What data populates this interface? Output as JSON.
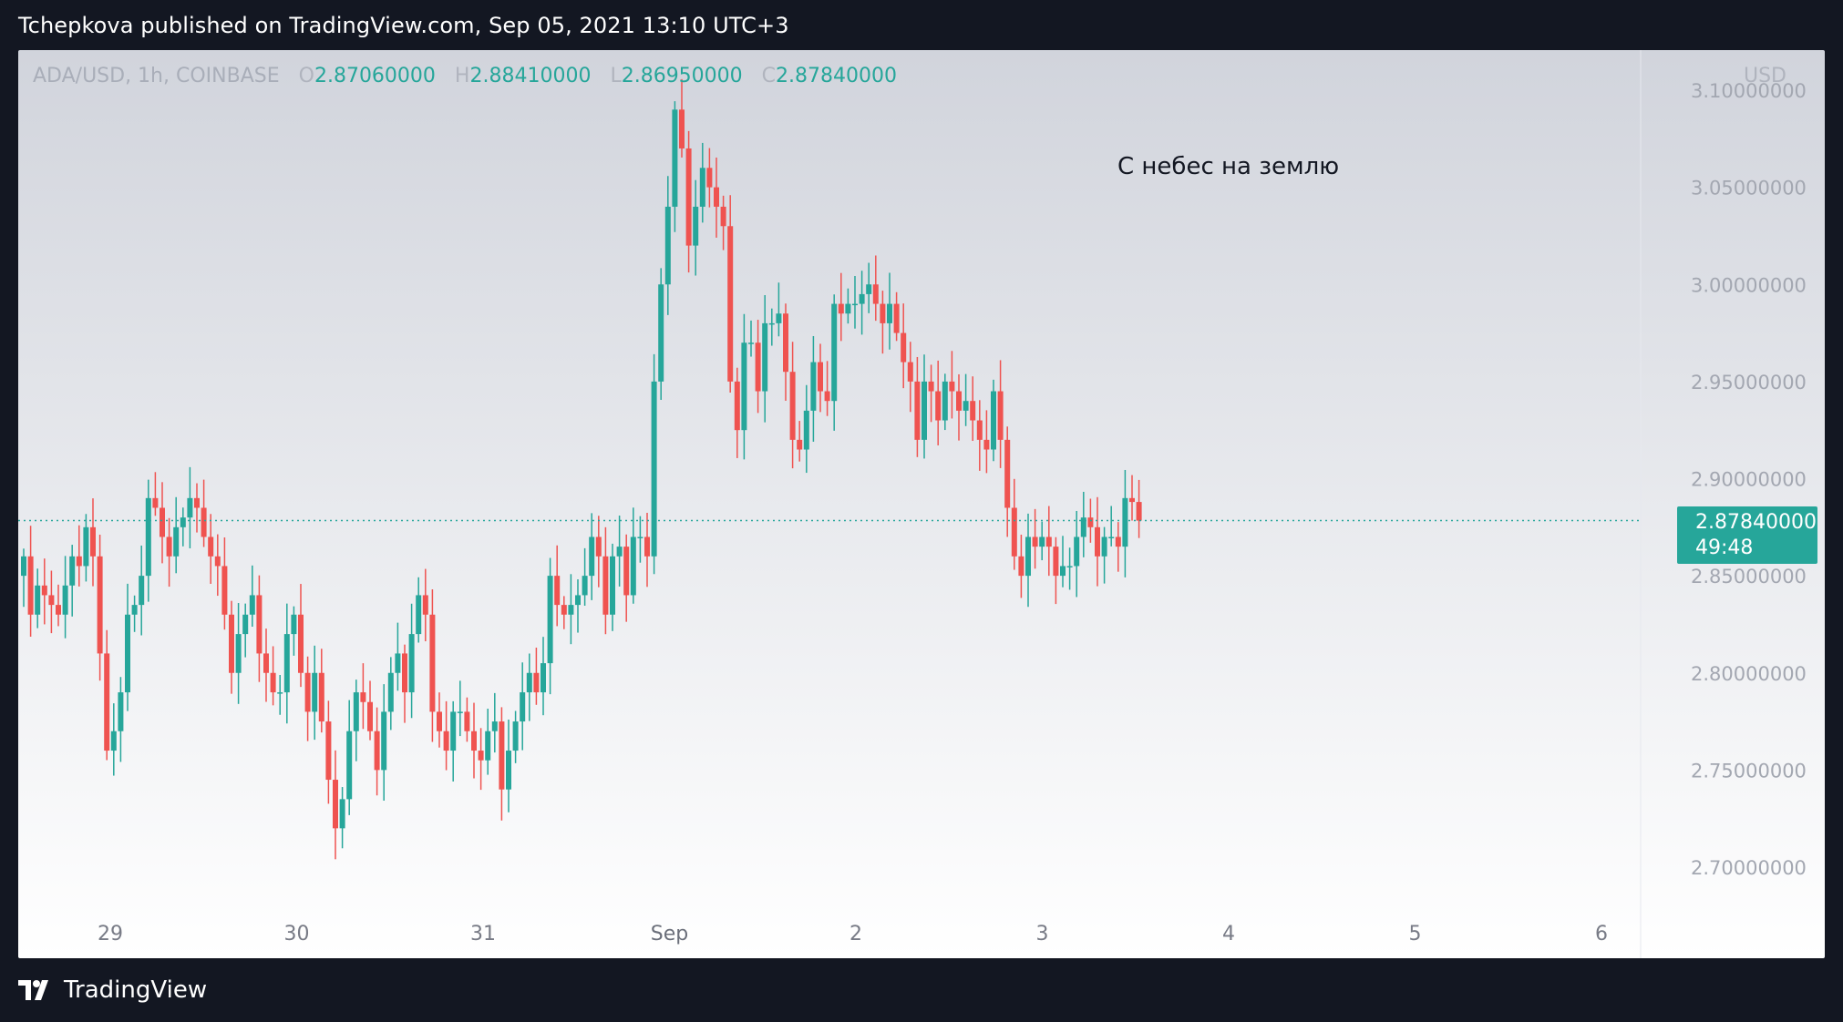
{
  "header": {
    "title": "Tchepkova published on TradingView.com, Sep 05, 2021 13:10 UTC+3"
  },
  "legend": {
    "symbol": "ADA/USD, 1h, COINBASE",
    "open_key": "O",
    "open": "2.87060000",
    "high_key": "H",
    "high": "2.88410000",
    "low_key": "L",
    "low": "2.86950000",
    "close_key": "C",
    "close": "2.87840000"
  },
  "currency": "USD",
  "annotation": "С небес на землю",
  "price_tag": {
    "price": "2.87840000",
    "countdown": "49:48"
  },
  "brand": {
    "name": "TradingView"
  },
  "colors": {
    "up": "#26a69a",
    "down": "#ef5350",
    "background_top": "#d1d4dc",
    "background_bottom": "#ffffff",
    "frame": "#131722"
  },
  "chart_data": {
    "type": "candlestick",
    "symbol": "ADA/USD",
    "interval": "1h",
    "exchange": "COINBASE",
    "last_price": 2.8784,
    "ylim": [
      2.685,
      3.11
    ],
    "y_ticks": [
      {
        "value": 3.1,
        "label": "3.10000000"
      },
      {
        "value": 3.05,
        "label": "3.05000000"
      },
      {
        "value": 3.0,
        "label": "3.00000000"
      },
      {
        "value": 2.95,
        "label": "2.95000000"
      },
      {
        "value": 2.9,
        "label": "2.90000000"
      },
      {
        "value": 2.85,
        "label": "2.85000000"
      },
      {
        "value": 2.8,
        "label": "2.80000000"
      },
      {
        "value": 2.75,
        "label": "2.75000000"
      },
      {
        "value": 2.7,
        "label": "2.70000000"
      }
    ],
    "x_ticks": [
      {
        "label": "29",
        "day": 0
      },
      {
        "label": "30",
        "day": 1
      },
      {
        "label": "31",
        "day": 2
      },
      {
        "label": "Sep",
        "day": 3
      },
      {
        "label": "2",
        "day": 4
      },
      {
        "label": "3",
        "day": 5
      },
      {
        "label": "4",
        "day": 6
      },
      {
        "label": "5",
        "day": 7
      },
      {
        "label": "6",
        "day": 8
      }
    ],
    "closes": [
      2.86,
      2.83,
      2.845,
      2.84,
      2.835,
      2.83,
      2.845,
      2.86,
      2.855,
      2.875,
      2.86,
      2.81,
      2.76,
      2.77,
      2.79,
      2.83,
      2.835,
      2.85,
      2.89,
      2.885,
      2.87,
      2.86,
      2.875,
      2.88,
      2.89,
      2.885,
      2.87,
      2.86,
      2.855,
      2.83,
      2.8,
      2.82,
      2.83,
      2.84,
      2.81,
      2.8,
      2.79,
      2.79,
      2.82,
      2.83,
      2.8,
      2.78,
      2.8,
      2.775,
      2.745,
      2.72,
      2.735,
      2.77,
      2.79,
      2.785,
      2.77,
      2.75,
      2.78,
      2.8,
      2.81,
      2.79,
      2.82,
      2.84,
      2.83,
      2.78,
      2.77,
      2.76,
      2.78,
      2.78,
      2.77,
      2.76,
      2.755,
      2.77,
      2.775,
      2.74,
      2.76,
      2.775,
      2.79,
      2.8,
      2.79,
      2.805,
      2.85,
      2.835,
      2.83,
      2.835,
      2.84,
      2.85,
      2.87,
      2.86,
      2.83,
      2.86,
      2.865,
      2.84,
      2.87,
      2.87,
      2.86,
      2.95,
      3.0,
      3.04,
      3.09,
      3.07,
      3.02,
      3.04,
      3.06,
      3.05,
      3.04,
      3.03,
      2.95,
      2.925,
      2.97,
      2.97,
      2.945,
      2.98,
      2.98,
      2.985,
      2.955,
      2.92,
      2.915,
      2.935,
      2.96,
      2.945,
      2.94,
      2.99,
      2.985,
      2.99,
      2.99,
      2.995,
      3.0,
      2.99,
      2.98,
      2.99,
      2.975,
      2.96,
      2.95,
      2.92,
      2.95,
      2.945,
      2.93,
      2.95,
      2.945,
      2.935,
      2.94,
      2.93,
      2.92,
      2.915,
      2.945,
      2.92,
      2.885,
      2.86,
      2.85,
      2.87,
      2.865,
      2.87,
      2.865,
      2.85,
      2.855,
      2.855,
      2.87,
      2.88,
      2.875,
      2.86,
      2.87,
      2.87,
      2.865,
      2.89,
      2.888,
      2.8784
    ]
  }
}
